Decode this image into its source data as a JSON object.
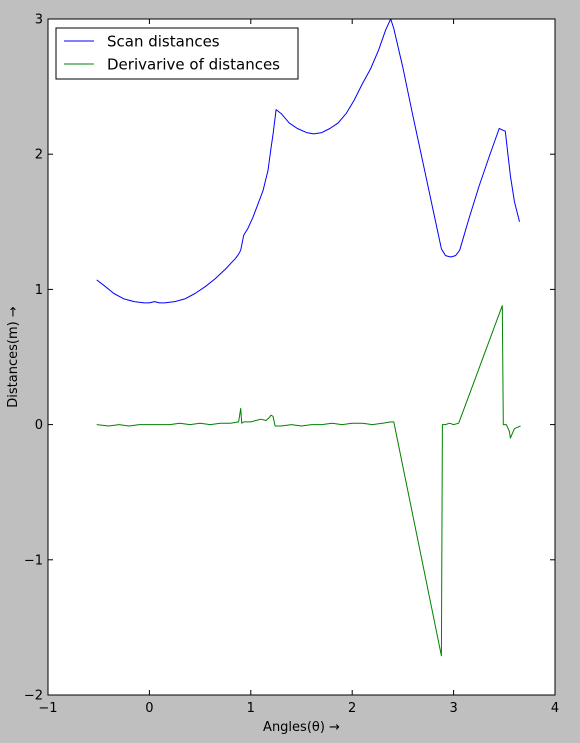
{
  "chart_data": {
    "type": "line",
    "xlabel": "Angles(θ) →",
    "ylabel": "Distances(m) →",
    "xlim": [
      -1,
      4
    ],
    "ylim": [
      -2,
      3
    ],
    "xticks": [
      -1,
      0,
      1,
      2,
      3,
      4
    ],
    "yticks": [
      -2,
      -1,
      0,
      1,
      2,
      3
    ],
    "xtick_labels": [
      "−1",
      "0",
      "1",
      "2",
      "3",
      "4"
    ],
    "ytick_labels": [
      "−2",
      "−1",
      "0",
      "1",
      "2",
      "3"
    ],
    "grid": false,
    "legend_position": "top-left",
    "series": [
      {
        "name": "Scan distances",
        "color": "#0000ff",
        "x": [
          -0.52,
          -0.45,
          -0.35,
          -0.25,
          -0.15,
          -0.05,
          0.0,
          0.05,
          0.1,
          0.15,
          0.25,
          0.35,
          0.45,
          0.55,
          0.65,
          0.75,
          0.85,
          0.88,
          0.9,
          0.93,
          0.97,
          1.02,
          1.07,
          1.12,
          1.17,
          1.2,
          1.22,
          1.25,
          1.3,
          1.38,
          1.46,
          1.55,
          1.62,
          1.7,
          1.78,
          1.86,
          1.94,
          2.02,
          2.1,
          2.18,
          2.26,
          2.33,
          2.38,
          2.41,
          2.5,
          2.6,
          2.7,
          2.8,
          2.88,
          2.92,
          2.97,
          3.02,
          3.06,
          3.15,
          3.25,
          3.35,
          3.45,
          3.48,
          3.51,
          3.53,
          3.56,
          3.6,
          3.65
        ],
        "values": [
          1.07,
          1.03,
          0.97,
          0.93,
          0.91,
          0.9,
          0.9,
          0.91,
          0.9,
          0.9,
          0.91,
          0.93,
          0.97,
          1.02,
          1.08,
          1.15,
          1.23,
          1.26,
          1.29,
          1.4,
          1.45,
          1.53,
          1.63,
          1.73,
          1.88,
          2.05,
          2.15,
          2.33,
          2.3,
          2.23,
          2.19,
          2.16,
          2.15,
          2.16,
          2.19,
          2.23,
          2.3,
          2.4,
          2.52,
          2.63,
          2.77,
          2.92,
          3.0,
          2.93,
          2.64,
          2.28,
          1.93,
          1.58,
          1.3,
          1.25,
          1.24,
          1.25,
          1.29,
          1.52,
          1.76,
          1.98,
          2.19,
          2.18,
          2.17,
          2.04,
          1.84,
          1.65,
          1.5
        ]
      },
      {
        "name": "Derivarive of distances",
        "color": "#008000",
        "x": [
          -0.52,
          -0.4,
          -0.3,
          -0.2,
          -0.1,
          0.0,
          0.1,
          0.2,
          0.3,
          0.4,
          0.5,
          0.6,
          0.7,
          0.8,
          0.88,
          0.9,
          0.91,
          0.93,
          1.0,
          1.05,
          1.1,
          1.15,
          1.18,
          1.2,
          1.22,
          1.24,
          1.3,
          1.4,
          1.5,
          1.6,
          1.7,
          1.8,
          1.9,
          2.0,
          2.1,
          2.2,
          2.3,
          2.38,
          2.41,
          2.88,
          2.89,
          2.92,
          2.96,
          3.0,
          3.05,
          3.48,
          3.49,
          3.52,
          3.55,
          3.56,
          3.6,
          3.63,
          3.66
        ],
        "values": [
          0.0,
          -0.01,
          0.0,
          -0.01,
          0.0,
          0.0,
          0.0,
          0.0,
          0.01,
          0.0,
          0.01,
          0.0,
          0.01,
          0.01,
          0.02,
          0.12,
          0.01,
          0.02,
          0.02,
          0.03,
          0.04,
          0.03,
          0.05,
          0.07,
          0.06,
          -0.01,
          -0.01,
          0.0,
          -0.01,
          0.0,
          0.0,
          0.01,
          0.0,
          0.01,
          0.01,
          0.0,
          0.01,
          0.02,
          0.02,
          -1.71,
          0.0,
          0.0,
          0.01,
          0.0,
          0.01,
          0.88,
          0.0,
          0.0,
          -0.05,
          -0.1,
          -0.03,
          -0.02,
          -0.01
        ]
      }
    ]
  }
}
